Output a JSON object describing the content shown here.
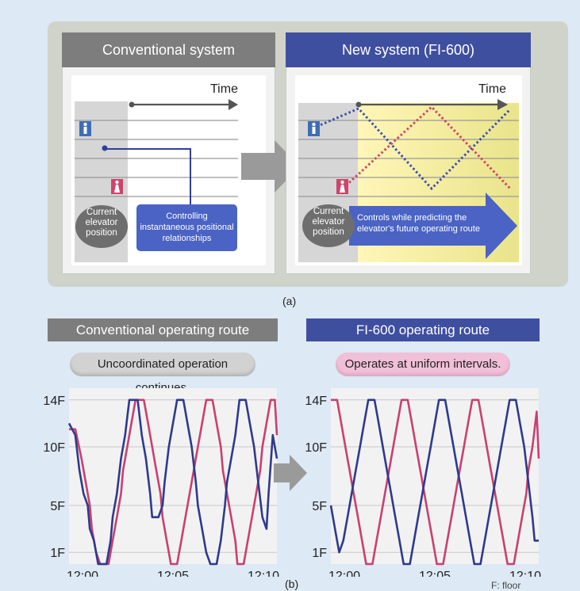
{
  "panel_a": {
    "conventional": {
      "title": "Conventional system",
      "time_label": "Time",
      "current_label": "Current elevator position",
      "control_label": "Controlling instantaneous positional relationships"
    },
    "new": {
      "title": "New system (FI-600)",
      "time_label": "Time",
      "current_label": "Current elevator position",
      "control_label": "Controls while predicting the elevator's future operating route"
    },
    "caption": "(a)"
  },
  "panel_b": {
    "conventional": {
      "header": "Conventional operating route",
      "pill": "Uncoordinated operation continues."
    },
    "fi600": {
      "header": "FI-600 operating route",
      "pill": "Operates at uniform intervals."
    },
    "caption": "(b)",
    "footnote": "F: floor"
  },
  "colors": {
    "gray_header": "#7d7d7d",
    "blue_header": "#3f4fa0",
    "blue_line": "#2e3a8c",
    "red_line": "#c94070",
    "pill_gray": "#d2d2d2",
    "pill_pink": "#f2bfd8",
    "arrow_gray": "#9a9a9a"
  },
  "chart_data": [
    {
      "type": "line",
      "title": "Conventional operating route",
      "x_ticks": [
        "12:00",
        "12:05",
        "12:10"
      ],
      "y_ticks": [
        "1F",
        "5F",
        "10F",
        "14F"
      ],
      "ylim": [
        0,
        15
      ],
      "xlim": [
        0,
        10
      ],
      "grid": true,
      "series": [
        {
          "color": "#c94070",
          "points": [
            [
              0,
              11.5
            ],
            [
              0.3,
              11.5
            ],
            [
              0.6,
              9
            ],
            [
              0.8,
              7
            ],
            [
              1.0,
              5
            ],
            [
              1.1,
              3
            ],
            [
              1.3,
              1
            ],
            [
              1.5,
              0
            ],
            [
              1.9,
              0
            ],
            [
              2.1,
              2
            ],
            [
              2.3,
              4
            ],
            [
              2.5,
              6
            ],
            [
              2.6,
              8
            ],
            [
              2.8,
              10
            ],
            [
              3.0,
              12
            ],
            [
              3.2,
              14
            ],
            [
              3.6,
              14
            ],
            [
              3.8,
              12
            ],
            [
              4.0,
              10
            ],
            [
              4.2,
              8
            ],
            [
              4.4,
              6
            ],
            [
              4.5,
              4
            ],
            [
              4.7,
              2
            ],
            [
              4.9,
              0
            ],
            [
              5.2,
              0
            ],
            [
              5.4,
              2
            ],
            [
              5.6,
              4
            ],
            [
              5.8,
              6
            ],
            [
              6.0,
              8
            ],
            [
              6.2,
              10
            ],
            [
              6.4,
              12
            ],
            [
              6.6,
              14
            ],
            [
              6.9,
              14
            ],
            [
              7.1,
              12
            ],
            [
              7.3,
              10
            ],
            [
              7.4,
              8
            ],
            [
              7.6,
              6
            ],
            [
              7.8,
              4
            ],
            [
              8.0,
              2
            ],
            [
              8.1,
              0
            ],
            [
              8.4,
              0
            ],
            [
              8.6,
              2
            ],
            [
              8.8,
              4
            ],
            [
              9.0,
              6
            ],
            [
              9.2,
              8
            ],
            [
              9.3,
              10
            ],
            [
              9.5,
              12
            ],
            [
              9.7,
              14
            ],
            [
              9.9,
              14
            ],
            [
              10,
              11
            ]
          ]
        },
        {
          "color": "#2e3a8c",
          "points": [
            [
              0,
              12
            ],
            [
              0.3,
              11
            ],
            [
              0.5,
              8
            ],
            [
              0.7,
              6
            ],
            [
              0.9,
              5
            ],
            [
              1.0,
              3
            ],
            [
              1.2,
              2
            ],
            [
              1.4,
              0
            ],
            [
              1.8,
              0
            ],
            [
              2.0,
              2
            ],
            [
              2.1,
              4
            ],
            [
              2.3,
              6
            ],
            [
              2.5,
              9
            ],
            [
              2.7,
              11
            ],
            [
              2.9,
              14
            ],
            [
              3.3,
              14
            ],
            [
              3.5,
              11
            ],
            [
              3.7,
              9
            ],
            [
              3.9,
              6
            ],
            [
              4.0,
              4
            ],
            [
              4.3,
              4
            ],
            [
              4.5,
              5
            ],
            [
              4.6,
              7
            ],
            [
              4.8,
              10
            ],
            [
              5.0,
              12
            ],
            [
              5.2,
              14
            ],
            [
              5.5,
              14
            ],
            [
              5.7,
              12
            ],
            [
              5.9,
              10
            ],
            [
              6.1,
              7
            ],
            [
              6.2,
              5
            ],
            [
              6.4,
              3
            ],
            [
              6.6,
              1
            ],
            [
              6.8,
              0
            ],
            [
              7.1,
              0
            ],
            [
              7.3,
              2
            ],
            [
              7.5,
              5
            ],
            [
              7.6,
              7
            ],
            [
              7.8,
              9
            ],
            [
              8.0,
              11
            ],
            [
              8.2,
              14
            ],
            [
              8.5,
              14
            ],
            [
              8.7,
              12
            ],
            [
              8.9,
              10
            ],
            [
              9.1,
              7
            ],
            [
              9.3,
              4
            ],
            [
              9.5,
              3
            ],
            [
              9.6,
              6
            ],
            [
              9.8,
              11
            ],
            [
              10,
              9
            ]
          ]
        }
      ]
    },
    {
      "type": "line",
      "title": "FI-600 operating route",
      "x_ticks": [
        "12:00",
        "12:05",
        "12:10"
      ],
      "y_ticks": [
        "1F",
        "5F",
        "10F",
        "14F"
      ],
      "ylim": [
        0,
        15
      ],
      "xlim": [
        0,
        10
      ],
      "grid": true,
      "series": [
        {
          "color": "#c94070",
          "points": [
            [
              0,
              14
            ],
            [
              0.3,
              14
            ],
            [
              0.5,
              12
            ],
            [
              0.7,
              10
            ],
            [
              0.9,
              8
            ],
            [
              1.1,
              6
            ],
            [
              1.3,
              4
            ],
            [
              1.5,
              2
            ],
            [
              1.7,
              0
            ],
            [
              2.0,
              0
            ],
            [
              2.2,
              2
            ],
            [
              2.4,
              4
            ],
            [
              2.6,
              6
            ],
            [
              2.8,
              8
            ],
            [
              3.0,
              10
            ],
            [
              3.2,
              12
            ],
            [
              3.4,
              14
            ],
            [
              3.7,
              14
            ],
            [
              3.9,
              12
            ],
            [
              4.1,
              10
            ],
            [
              4.3,
              8
            ],
            [
              4.5,
              6
            ],
            [
              4.7,
              4
            ],
            [
              4.9,
              2
            ],
            [
              5.1,
              0
            ],
            [
              5.4,
              0
            ],
            [
              5.6,
              2
            ],
            [
              5.8,
              4
            ],
            [
              6.0,
              6
            ],
            [
              6.2,
              8
            ],
            [
              6.4,
              10
            ],
            [
              6.6,
              12
            ],
            [
              6.8,
              14
            ],
            [
              7.1,
              14
            ],
            [
              7.3,
              12
            ],
            [
              7.5,
              10
            ],
            [
              7.7,
              8
            ],
            [
              7.9,
              6
            ],
            [
              8.1,
              4
            ],
            [
              8.3,
              2
            ],
            [
              8.5,
              0
            ],
            [
              8.8,
              0
            ],
            [
              9.0,
              2
            ],
            [
              9.2,
              4
            ],
            [
              9.4,
              6
            ],
            [
              9.5,
              8
            ],
            [
              9.7,
              10
            ],
            [
              9.9,
              13
            ],
            [
              10,
              9
            ]
          ]
        },
        {
          "color": "#2e3a8c",
          "points": [
            [
              0,
              5
            ],
            [
              0.2,
              3
            ],
            [
              0.4,
              1
            ],
            [
              0.6,
              2
            ],
            [
              0.8,
              4
            ],
            [
              1.0,
              6
            ],
            [
              1.2,
              8
            ],
            [
              1.4,
              10
            ],
            [
              1.6,
              12
            ],
            [
              1.8,
              14
            ],
            [
              2.1,
              14
            ],
            [
              2.3,
              12
            ],
            [
              2.5,
              10
            ],
            [
              2.7,
              8
            ],
            [
              2.9,
              6
            ],
            [
              3.1,
              4
            ],
            [
              3.3,
              2
            ],
            [
              3.5,
              0
            ],
            [
              3.8,
              0
            ],
            [
              4.0,
              2
            ],
            [
              4.2,
              4
            ],
            [
              4.4,
              6
            ],
            [
              4.6,
              8
            ],
            [
              4.8,
              10
            ],
            [
              5.0,
              12
            ],
            [
              5.2,
              14
            ],
            [
              5.5,
              14
            ],
            [
              5.7,
              12
            ],
            [
              5.9,
              10
            ],
            [
              6.1,
              8
            ],
            [
              6.3,
              6
            ],
            [
              6.5,
              4
            ],
            [
              6.7,
              2
            ],
            [
              6.9,
              0
            ],
            [
              7.2,
              0
            ],
            [
              7.4,
              2
            ],
            [
              7.6,
              4
            ],
            [
              7.8,
              6
            ],
            [
              8.0,
              8
            ],
            [
              8.2,
              10
            ],
            [
              8.4,
              12
            ],
            [
              8.6,
              14
            ],
            [
              8.9,
              14
            ],
            [
              9.1,
              12
            ],
            [
              9.3,
              10
            ],
            [
              9.5,
              7
            ],
            [
              9.7,
              4
            ],
            [
              9.8,
              2
            ],
            [
              10,
              2
            ]
          ]
        }
      ]
    }
  ]
}
